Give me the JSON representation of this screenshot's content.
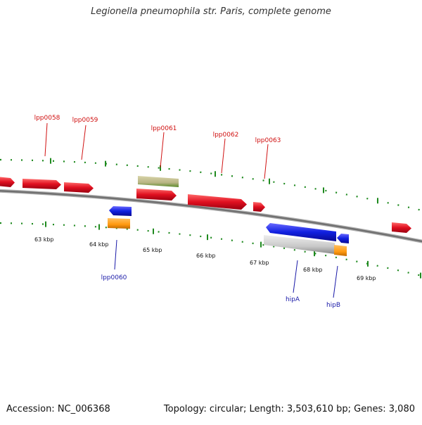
{
  "header": {
    "title": "Legionella pneumophila str. Paris, complete genome"
  },
  "footer": {
    "accession": "Accession: NC_006368",
    "summary": "Topology: circular; Length: 3,503,610 bp; Genes: 3,080"
  },
  "colors": {
    "background": "#ffffff",
    "backbone": "#8a8a8a",
    "tick": "#1f8a1f",
    "forward_cds": "#e01020",
    "reverse_cds": "#1020e0",
    "other_feature": "#b8b484",
    "orange_feature": "#ff9a10",
    "grey_feature": "#c8c8c8",
    "forward_label": "#d01010",
    "reverse_label": "#1a1aa8"
  },
  "scale": {
    "unit": "kbp",
    "ticks": [
      {
        "label": "63 kbp"
      },
      {
        "label": "64 kbp"
      },
      {
        "label": "65 kbp"
      },
      {
        "label": "66 kbp"
      },
      {
        "label": "67 kbp"
      },
      {
        "label": "68 kbp"
      },
      {
        "label": "69 kbp"
      }
    ]
  },
  "gene_labels": {
    "forward": [
      "lpp0058",
      "lpp0059",
      "lpp0061",
      "lpp0062",
      "lpp0063"
    ],
    "reverse": [
      "lpp0060",
      "hipA",
      "hipB"
    ]
  }
}
